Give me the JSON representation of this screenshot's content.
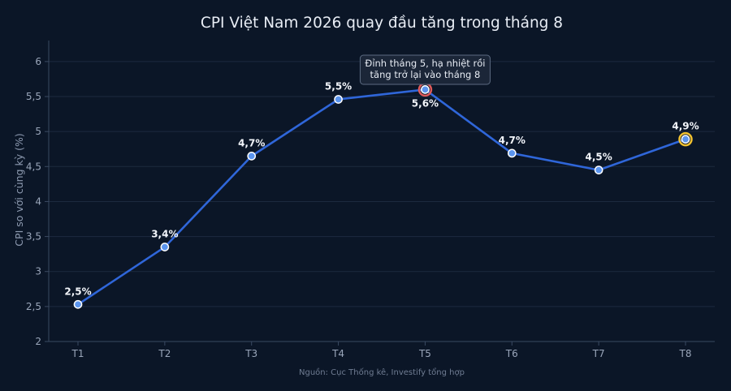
{
  "chart_data": {
    "type": "line",
    "title": "CPI Việt Nam 2026 quay đầu tăng trong tháng 8",
    "ylabel": "CPI so với cùng kỳ (%)",
    "xlabel": "",
    "categories": [
      "T1",
      "T2",
      "T3",
      "T4",
      "T5",
      "T6",
      "T7",
      "T8"
    ],
    "series": [
      {
        "values": [
          2.53,
          3.35,
          4.65,
          5.46,
          5.6,
          4.69,
          4.45,
          4.89
        ],
        "labels": [
          "2,5%",
          "3,4%",
          "4,7%",
          "5,5%",
          "5,6%",
          "4,7%",
          "4,5%",
          "4,9%"
        ]
      }
    ],
    "ylim": [
      2,
      6.3
    ],
    "yticks": [
      {
        "value": 2,
        "label": "2"
      },
      {
        "value": 2.5,
        "label": "2,5"
      },
      {
        "value": 3,
        "label": "3"
      },
      {
        "value": 3.5,
        "label": "3,5"
      },
      {
        "value": 4,
        "label": "4"
      },
      {
        "value": 4.5,
        "label": "4,5"
      },
      {
        "value": 5,
        "label": "5"
      },
      {
        "value": 5.5,
        "label": "5,5"
      },
      {
        "value": 6,
        "label": "6"
      }
    ],
    "grid": true,
    "annotation": {
      "lines": [
        "Đỉnh tháng 5, hạ nhiệt rồi",
        "tăng trở lại vào tháng 8"
      ],
      "category": "T5"
    },
    "highlights": [
      {
        "category": "T5",
        "ring_color": "#e05a5a"
      },
      {
        "category": "T8",
        "ring_color": "#f2c230"
      }
    ],
    "source": "Nguồn: Cục Thống kê, Investify tổng hợp"
  },
  "colors": {
    "background": "#0b1627",
    "line": "#2f66d9",
    "marker_fill": "#5b95ef",
    "marker_edge": "#ffffff",
    "grid": "#1c2a3f",
    "axis": "#3a4a62"
  }
}
